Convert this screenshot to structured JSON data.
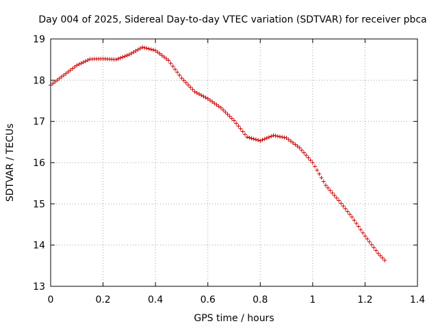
{
  "chart_data": {
    "type": "scatter",
    "title": "Day 004 of 2025, Sidereal Day-to-day VTEC variation (SDTVAR) for receiver pbca",
    "xlabel": "GPS time / hours",
    "ylabel": "SDTVAR / TECUs",
    "xlim": [
      0,
      1.4
    ],
    "ylim": [
      13,
      19
    ],
    "xticks": [
      0,
      0.2,
      0.4,
      0.6,
      0.8,
      1,
      1.2,
      1.4
    ],
    "xtick_labels": [
      "0",
      "0.2",
      "0.4",
      "0.6",
      "0.8",
      "1",
      "1.2",
      "1.4"
    ],
    "yticks": [
      13,
      14,
      15,
      16,
      17,
      18,
      19
    ],
    "ytick_labels": [
      "13",
      "14",
      "15",
      "16",
      "17",
      "18",
      "19"
    ],
    "grid": true,
    "marker": "+",
    "color": "#cc0000",
    "series": [
      {
        "name": "SDTVAR",
        "x": [
          0.0,
          0.05,
          0.1,
          0.15,
          0.2,
          0.25,
          0.3,
          0.35,
          0.4,
          0.45,
          0.5,
          0.55,
          0.6,
          0.65,
          0.7,
          0.75,
          0.8,
          0.85,
          0.9,
          0.95,
          1.0,
          1.05,
          1.1,
          1.15,
          1.2,
          1.25,
          1.275
        ],
        "y": [
          17.88,
          18.12,
          18.36,
          18.51,
          18.52,
          18.5,
          18.62,
          18.8,
          18.72,
          18.48,
          18.05,
          17.72,
          17.55,
          17.33,
          17.02,
          16.62,
          16.53,
          16.66,
          16.6,
          16.36,
          16.0,
          15.45,
          15.08,
          14.68,
          14.22,
          13.8,
          13.63
        ]
      }
    ]
  }
}
